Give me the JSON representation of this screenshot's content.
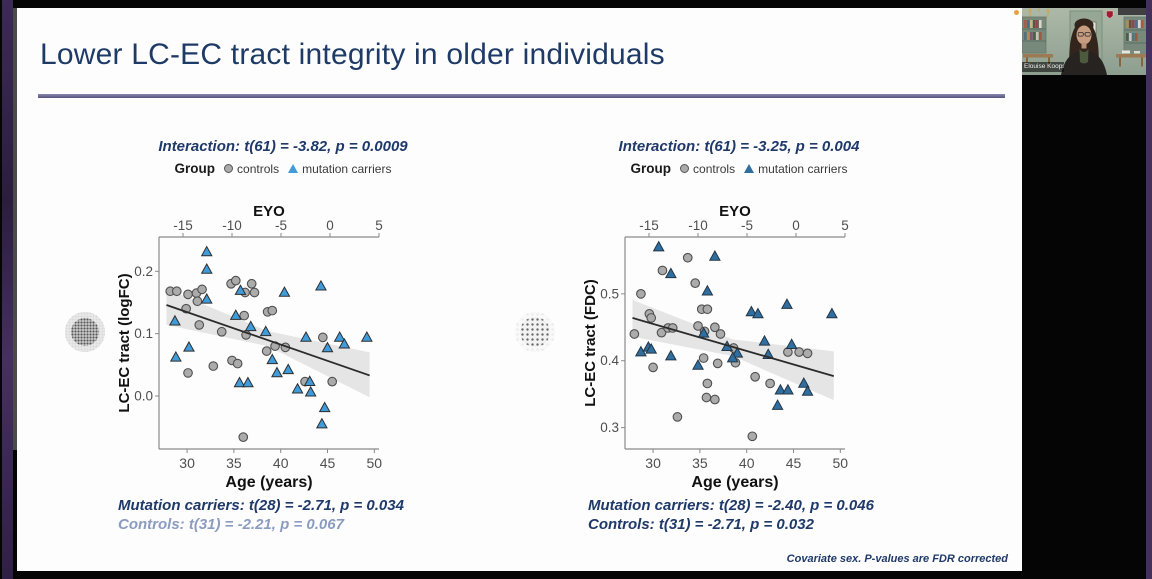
{
  "slide": {
    "title": "Lower LC-EC tract integrity in older individuals",
    "footnote": "Covariate sex. P-values are FDR corrected"
  },
  "legend": {
    "title": "Group",
    "controls": "controls",
    "carriers": "mutation carriers"
  },
  "webcam": {
    "name": "Elouise Koops"
  },
  "colors": {
    "title": "#1e3a66",
    "stats": "#1f3969",
    "underline": "#62608f",
    "axis": "#8a8a8a",
    "tick_text": "#4f4f4f",
    "band": "#dcdcdc",
    "line": "#2b2b2b"
  },
  "chart_data": [
    {
      "type": "scatter",
      "stats": {
        "interaction": "Interaction: t(61) = -3.82, p = 0.0009",
        "mutation": "Mutation carriers: t(28) = -2.71, p = 0.034",
        "controls": "Controls: t(31) = -2.21, p = 0.067",
        "controls_color": "#8c9cc0"
      },
      "top_axis": {
        "label": "EYO",
        "ticks": [
          -15,
          -10,
          -5,
          0,
          5
        ]
      },
      "xlabel": "Age (years)",
      "ylabel": "LC-EC tract (logFC)",
      "x_ticks": [
        30,
        35,
        40,
        45,
        50
      ],
      "y_ticks": [
        0,
        0.1,
        0.2
      ],
      "xlim": [
        27,
        50.5
      ],
      "ylim": [
        -0.085,
        0.255
      ],
      "regression": {
        "x": [
          27.8,
          49.5
        ],
        "y": [
          0.146,
          0.033
        ]
      },
      "ci_band": {
        "x": [
          27.8,
          38.6,
          49.5
        ],
        "upper": [
          0.172,
          0.104,
          0.07
        ],
        "lower": [
          0.114,
          0.08,
          -0.002
        ]
      },
      "series": [
        {
          "name": "controls",
          "marker": "circle",
          "fill": "#ababab",
          "stroke": "#4f4f4f",
          "points": [
            [
              28.2,
              0.168
            ],
            [
              28.9,
              0.168
            ],
            [
              30.1,
              0.163
            ],
            [
              31.0,
              0.165
            ],
            [
              31.6,
              0.171
            ],
            [
              29.9,
              0.14
            ],
            [
              31.1,
              0.152
            ],
            [
              31.3,
              0.114
            ],
            [
              33.7,
              0.103
            ],
            [
              30.1,
              0.037
            ],
            [
              32.8,
              0.048
            ],
            [
              34.7,
              0.18
            ],
            [
              35.2,
              0.185
            ],
            [
              36.9,
              0.18
            ],
            [
              36.2,
              0.166
            ],
            [
              37.2,
              0.166
            ],
            [
              36.1,
              0.129
            ],
            [
              36.3,
              0.098
            ],
            [
              34.8,
              0.057
            ],
            [
              35.4,
              0.052
            ],
            [
              38.6,
              0.135
            ],
            [
              39.1,
              0.137
            ],
            [
              38.5,
              0.072
            ],
            [
              39.4,
              0.08
            ],
            [
              40.5,
              0.078
            ],
            [
              42.6,
              0.023
            ],
            [
              44.5,
              0.094
            ],
            [
              45.5,
              0.023
            ],
            [
              36.0,
              -0.066
            ]
          ]
        },
        {
          "name": "mutation carriers",
          "marker": "triangle",
          "fill": "#3f9bd9",
          "stroke": "#2e2e2e",
          "points": [
            [
              32.1,
              0.231
            ],
            [
              32.1,
              0.203
            ],
            [
              28.7,
              0.12
            ],
            [
              32.1,
              0.155
            ],
            [
              30.2,
              0.078
            ],
            [
              28.8,
              0.062
            ],
            [
              35.7,
              0.169
            ],
            [
              35.2,
              0.129
            ],
            [
              36.8,
              0.111
            ],
            [
              38.4,
              0.103
            ],
            [
              40.4,
              0.166
            ],
            [
              44.3,
              0.176
            ],
            [
              39.1,
              0.058
            ],
            [
              39.6,
              0.037
            ],
            [
              40.8,
              0.042
            ],
            [
              42.7,
              0.094
            ],
            [
              46.3,
              0.094
            ],
            [
              46.8,
              0.083
            ],
            [
              49.2,
              0.094
            ],
            [
              45.0,
              0.077
            ],
            [
              35.6,
              0.021
            ],
            [
              36.5,
              0.021
            ],
            [
              41.8,
              0.011
            ],
            [
              43.1,
              0.023
            ],
            [
              43.2,
              0.006
            ],
            [
              44.7,
              -0.019
            ],
            [
              44.4,
              -0.045
            ]
          ]
        }
      ]
    },
    {
      "type": "scatter",
      "stats": {
        "interaction": "Interaction: t(61) = -3.25, p = 0.004",
        "mutation": "Mutation carriers: t(28) = -2.40, p = 0.046",
        "controls": "Controls: t(31) = -2.71, p = 0.032",
        "controls_color": "#1f3969"
      },
      "top_axis": {
        "label": "EYO",
        "ticks": [
          -15,
          -10,
          -5,
          0,
          5
        ]
      },
      "xlabel": "Age (years)",
      "ylabel": "LC-EC tract (FDC)",
      "x_ticks": [
        30,
        35,
        40,
        45,
        50
      ],
      "y_ticks": [
        0.3,
        0.4,
        0.5
      ],
      "xlim": [
        27,
        50.5
      ],
      "ylim": [
        0.268,
        0.585
      ],
      "regression": {
        "x": [
          27.8,
          49.3
        ],
        "y": [
          0.464,
          0.377
        ]
      },
      "ci_band": {
        "x": [
          27.8,
          38.5,
          49.3
        ],
        "upper": [
          0.491,
          0.432,
          0.414
        ],
        "lower": [
          0.436,
          0.407,
          0.341
        ]
      },
      "series": [
        {
          "name": "controls",
          "marker": "circle",
          "fill": "#ababab",
          "stroke": "#4f4f4f",
          "points": [
            [
              28.0,
              0.44
            ],
            [
              28.7,
              0.5
            ],
            [
              29.6,
              0.47
            ],
            [
              29.8,
              0.464
            ],
            [
              31.0,
              0.535
            ],
            [
              30.9,
              0.442
            ],
            [
              31.6,
              0.449
            ],
            [
              32.1,
              0.449
            ],
            [
              30.0,
              0.39
            ],
            [
              32.6,
              0.316
            ],
            [
              33.7,
              0.554
            ],
            [
              34.5,
              0.516
            ],
            [
              34.8,
              0.452
            ],
            [
              35.2,
              0.477
            ],
            [
              35.8,
              0.477
            ],
            [
              35.5,
              0.444
            ],
            [
              36.6,
              0.45
            ],
            [
              37.2,
              0.44
            ],
            [
              35.4,
              0.404
            ],
            [
              36.9,
              0.396
            ],
            [
              35.8,
              0.366
            ],
            [
              35.7,
              0.345
            ],
            [
              36.6,
              0.342
            ],
            [
              38.6,
              0.419
            ],
            [
              38.8,
              0.397
            ],
            [
              40.9,
              0.376
            ],
            [
              40.6,
              0.287
            ],
            [
              42.5,
              0.366
            ],
            [
              44.4,
              0.413
            ],
            [
              45.6,
              0.413
            ],
            [
              46.5,
              0.411
            ]
          ]
        },
        {
          "name": "mutation carriers",
          "marker": "triangle",
          "fill": "#2f6e9e",
          "stroke": "#253545",
          "points": [
            [
              30.6,
              0.57
            ],
            [
              31.9,
              0.53
            ],
            [
              36.6,
              0.556
            ],
            [
              35.8,
              0.504
            ],
            [
              28.7,
              0.413
            ],
            [
              29.5,
              0.42
            ],
            [
              29.8,
              0.417
            ],
            [
              31.9,
              0.407
            ],
            [
              35.4,
              0.441
            ],
            [
              34.8,
              0.393
            ],
            [
              37.9,
              0.421
            ],
            [
              39.0,
              0.411
            ],
            [
              38.5,
              0.404
            ],
            [
              40.5,
              0.473
            ],
            [
              41.2,
              0.47
            ],
            [
              41.9,
              0.429
            ],
            [
              42.3,
              0.409
            ],
            [
              44.3,
              0.484
            ],
            [
              44.8,
              0.424
            ],
            [
              43.6,
              0.356
            ],
            [
              44.4,
              0.356
            ],
            [
              46.1,
              0.366
            ],
            [
              46.5,
              0.354
            ],
            [
              43.3,
              0.333
            ],
            [
              49.1,
              0.47
            ]
          ]
        }
      ]
    }
  ]
}
